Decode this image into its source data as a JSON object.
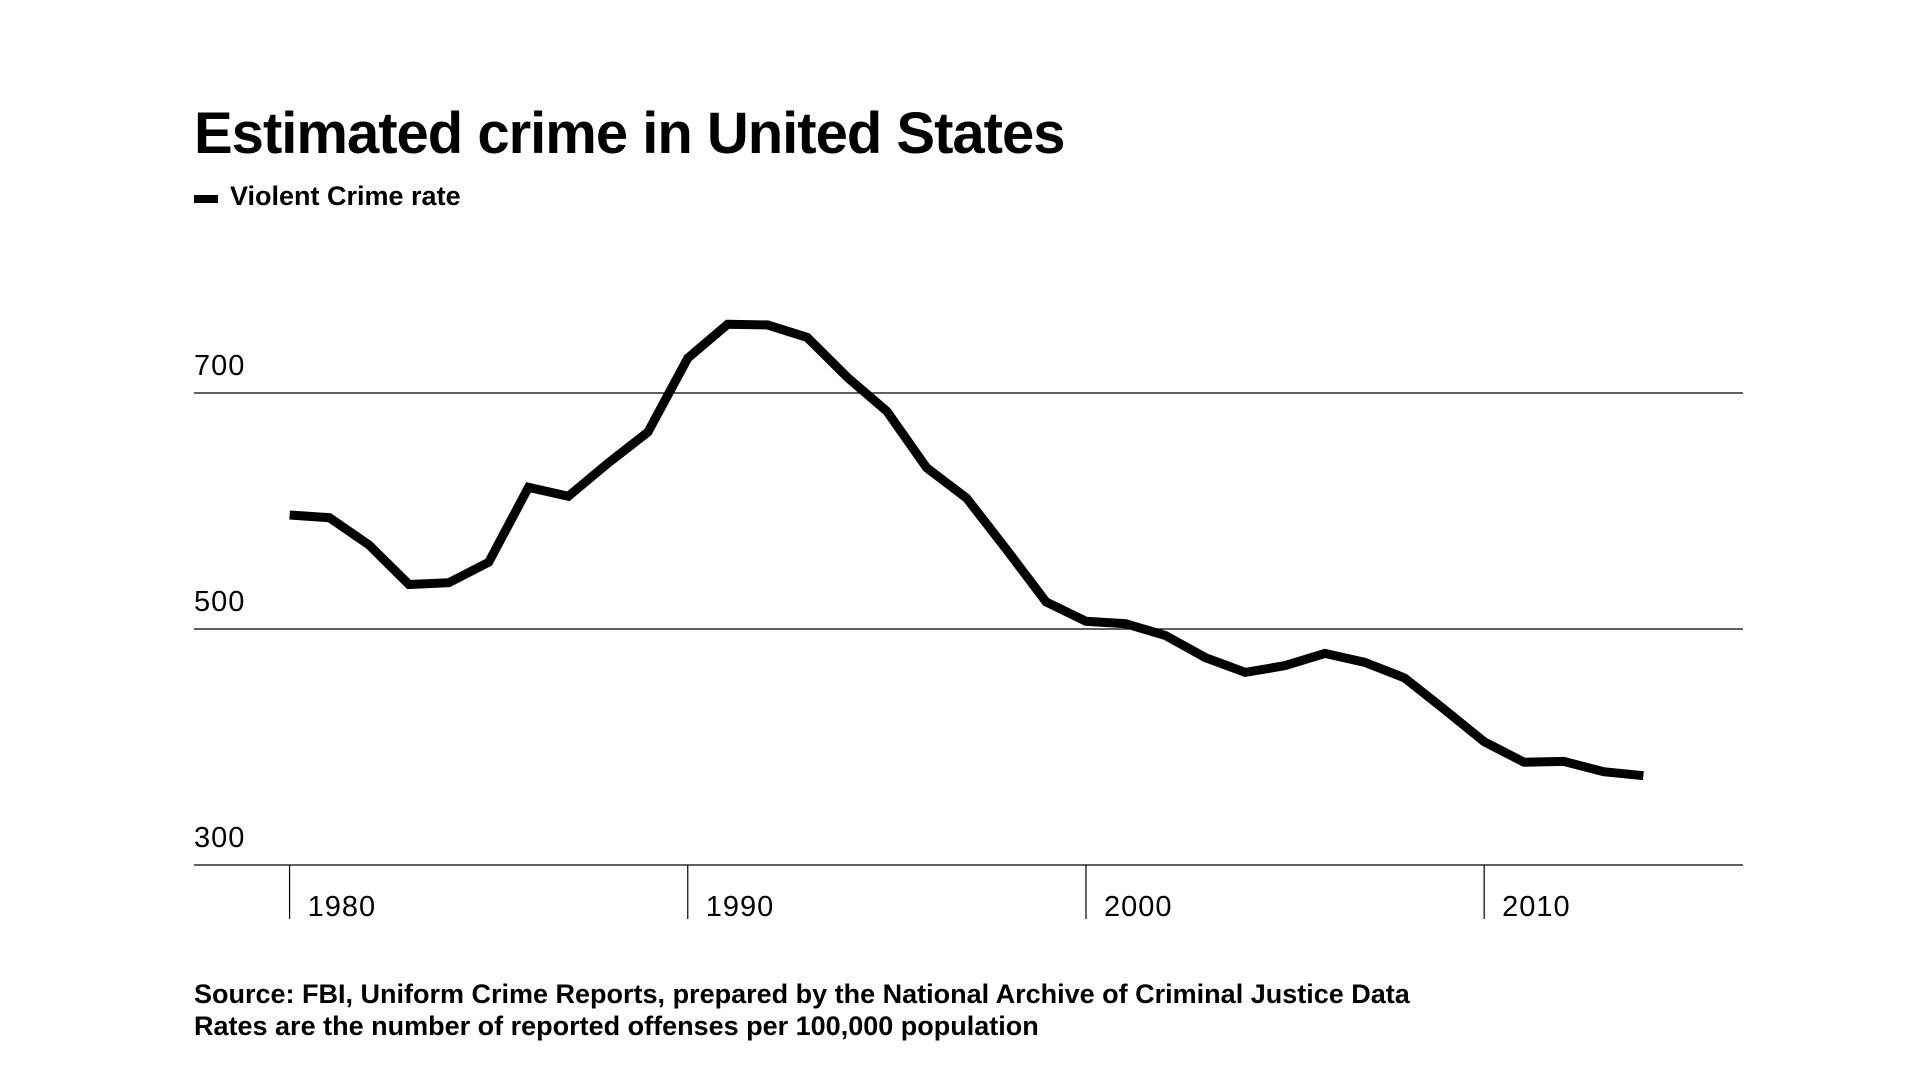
{
  "chart_data": {
    "type": "line",
    "title": "Estimated crime in United States",
    "notes": [
      "Source: FBI, Uniform Crime Reports, prepared by the National Archive of Criminal Justice Data",
      "Rates are the number of reported offenses per 100,000 population"
    ],
    "x": [
      1980,
      1981,
      1982,
      1983,
      1984,
      1985,
      1986,
      1987,
      1988,
      1989,
      1990,
      1991,
      1992,
      1993,
      1994,
      1995,
      1996,
      1997,
      1998,
      1999,
      2000,
      2001,
      2002,
      2003,
      2004,
      2005,
      2006,
      2007,
      2008,
      2009,
      2010,
      2011,
      2012,
      2013,
      2014
    ],
    "series": [
      {
        "name": "Violent Crime rate",
        "color": "#000000",
        "values": [
          596.6,
          594.3,
          571.1,
          537.7,
          539.2,
          556.6,
          620.1,
          612.5,
          640.6,
          666.9,
          729.6,
          758.2,
          757.7,
          747.1,
          713.6,
          684.5,
          636.6,
          611.0,
          567.6,
          523.0,
          506.5,
          504.5,
          494.4,
          475.8,
          463.2,
          469.0,
          479.3,
          471.8,
          458.6,
          431.9,
          404.5,
          387.1,
          387.8,
          379.1,
          375.7
        ]
      }
    ],
    "xlim": [
      1977.6,
      2016.5
    ],
    "xticks": [
      1980,
      1990,
      2000,
      2010
    ],
    "ylim": [
      300,
      800
    ],
    "yticks": [
      300,
      500,
      700
    ],
    "grid": true
  }
}
